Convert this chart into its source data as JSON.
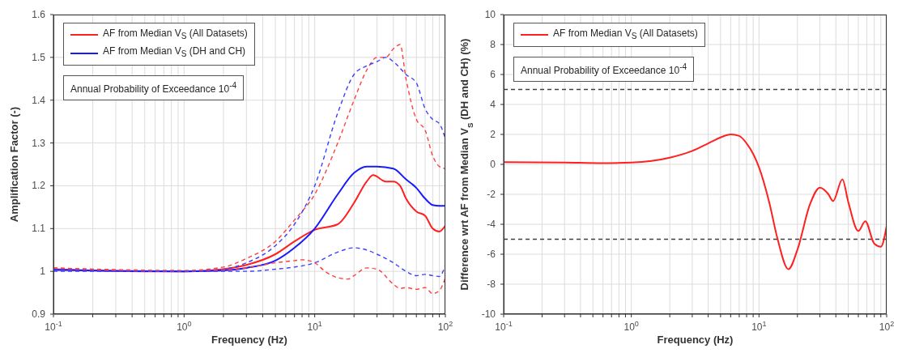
{
  "chart_data": [
    {
      "type": "line",
      "xlabel": "Frequency (Hz)",
      "ylabel": "Amplification Factor (-)",
      "log": "x",
      "grid": true,
      "legend": "top left",
      "xlim": [
        0.1,
        100
      ],
      "xticks": [
        {
          "value": 0.1,
          "label": "10$^{-1}$"
        },
        {
          "value": 0.2,
          "label": null
        },
        {
          "value": 0.3,
          "label": null
        },
        {
          "value": 0.4,
          "label": null
        },
        {
          "value": 0.5,
          "label": null
        },
        {
          "value": 0.6,
          "label": null
        },
        {
          "value": 0.7,
          "label": null
        },
        {
          "value": 0.8,
          "label": null
        },
        {
          "value": 0.9,
          "label": null
        },
        {
          "value": 1,
          "label": "10$^{0}$"
        },
        {
          "value": 2,
          "label": null
        },
        {
          "value": 3,
          "label": null
        },
        {
          "value": 4,
          "label": null
        },
        {
          "value": 5,
          "label": null
        },
        {
          "value": 6,
          "label": null
        },
        {
          "value": 7,
          "label": null
        },
        {
          "value": 8,
          "label": null
        },
        {
          "value": 9,
          "label": null
        },
        {
          "value": 10,
          "label": "10$^{1}$"
        },
        {
          "value": 20,
          "label": null
        },
        {
          "value": 30,
          "label": null
        },
        {
          "value": 40,
          "label": null
        },
        {
          "value": 50,
          "label": null
        },
        {
          "value": 60,
          "label": null
        },
        {
          "value": 70,
          "label": null
        },
        {
          "value": 80,
          "label": null
        },
        {
          "value": 90,
          "label": null
        },
        {
          "value": 100,
          "label": "10$^{2}$"
        }
      ],
      "ylim": [
        0.9,
        1.6
      ],
      "yticks": [
        0.9,
        1,
        1.1,
        1.2,
        1.3,
        1.4,
        1.5,
        1.6
      ],
      "annotations": [
        "Annual Probability of Exceedance 10$^{-4}$"
      ],
      "series": [
        {
          "name": "AF from Median V$_{S}$ (All Datasets)",
          "color": "#ff2020",
          "line_style": "solid",
          "x": [
            0.1,
            0.5,
            1,
            2,
            3,
            5,
            7,
            10,
            15,
            20,
            25,
            28,
            35,
            40,
            45,
            50,
            60,
            70,
            80,
            90,
            100
          ],
          "values": [
            1.005,
            1.0,
            1.0,
            1.005,
            1.015,
            1.04,
            1.07,
            1.097,
            1.11,
            1.16,
            1.21,
            1.225,
            1.21,
            1.21,
            1.2,
            1.17,
            1.14,
            1.13,
            1.1,
            1.093,
            1.107
          ]
        },
        {
          "name": "AF from Median V$_{S}$ (DH and CH)",
          "color": "#1a1aff",
          "line_style": "solid",
          "x": [
            0.1,
            1,
            2,
            3,
            5,
            7,
            10,
            15,
            20,
            25,
            30,
            40,
            50,
            60,
            70,
            80,
            90,
            100
          ],
          "values": [
            1.003,
            1.0,
            1.002,
            1.008,
            1.025,
            1.055,
            1.1,
            1.18,
            1.23,
            1.245,
            1.245,
            1.24,
            1.215,
            1.195,
            1.17,
            1.155,
            1.153,
            1.153
          ]
        },
        {
          "color": "#ff4040",
          "line_style": "dashed",
          "x": [
            0.1,
            1,
            2,
            3,
            5,
            7,
            10,
            15,
            20,
            25,
            30,
            35,
            40,
            45,
            50,
            60,
            70,
            80,
            90,
            100
          ],
          "values": [
            1.008,
            1.002,
            1.01,
            1.03,
            1.07,
            1.12,
            1.18,
            1.3,
            1.4,
            1.47,
            1.5,
            1.5,
            1.52,
            1.53,
            1.45,
            1.355,
            1.33,
            1.27,
            1.245,
            1.24
          ]
        },
        {
          "color": "#3f3fff",
          "line_style": "dashed",
          "x": [
            0.1,
            1,
            2,
            3,
            5,
            7,
            10,
            15,
            20,
            25,
            30,
            35,
            40,
            50,
            60,
            70,
            80,
            90,
            100
          ],
          "values": [
            1.005,
            1.0,
            1.005,
            1.02,
            1.06,
            1.11,
            1.2,
            1.37,
            1.46,
            1.48,
            1.49,
            1.5,
            1.49,
            1.46,
            1.44,
            1.38,
            1.355,
            1.345,
            1.31
          ]
        },
        {
          "color": "#ff4040",
          "line_style": "dashed",
          "x": [
            0.1,
            1,
            2,
            3,
            5,
            7,
            8,
            10,
            12,
            15,
            18,
            20,
            25,
            30,
            40,
            45,
            50,
            60,
            70,
            80,
            90,
            100
          ],
          "values": [
            1.008,
            1.0,
            1.003,
            1.008,
            1.02,
            1.025,
            1.027,
            1.02,
            1.0,
            0.985,
            0.982,
            0.99,
            1.008,
            1.005,
            0.97,
            0.96,
            0.962,
            0.958,
            0.962,
            0.948,
            0.955,
            0.985
          ]
        },
        {
          "color": "#3f3fff",
          "line_style": "dashed",
          "x": [
            0.1,
            1,
            2,
            3,
            5,
            7,
            10,
            15,
            20,
            25,
            30,
            40,
            50,
            60,
            70,
            80,
            90,
            100
          ],
          "values": [
            1.0,
            1.0,
            1.0,
            1.0,
            1.005,
            1.01,
            1.02,
            1.045,
            1.055,
            1.05,
            1.04,
            1.02,
            1.0,
            0.99,
            0.993,
            0.99,
            0.988,
            1.015
          ]
        }
      ]
    },
    {
      "type": "line",
      "xlabel": "Frequency (Hz)",
      "ylabel": "Difference wrt AF from Median V$_{S}$ (DH and CH) (%)",
      "log": "x",
      "grid": true,
      "legend": "top left",
      "xlim": [
        0.1,
        100
      ],
      "xticks": [
        {
          "value": 0.1,
          "label": "10$^{-1}$"
        },
        {
          "value": 0.2,
          "label": null
        },
        {
          "value": 0.3,
          "label": null
        },
        {
          "value": 0.4,
          "label": null
        },
        {
          "value": 0.5,
          "label": null
        },
        {
          "value": 0.6,
          "label": null
        },
        {
          "value": 0.7,
          "label": null
        },
        {
          "value": 0.8,
          "label": null
        },
        {
          "value": 0.9,
          "label": null
        },
        {
          "value": 1,
          "label": "10$^{0}$"
        },
        {
          "value": 2,
          "label": null
        },
        {
          "value": 3,
          "label": null
        },
        {
          "value": 4,
          "label": null
        },
        {
          "value": 5,
          "label": null
        },
        {
          "value": 6,
          "label": null
        },
        {
          "value": 7,
          "label": null
        },
        {
          "value": 8,
          "label": null
        },
        {
          "value": 9,
          "label": null
        },
        {
          "value": 10,
          "label": "10$^{1}$"
        },
        {
          "value": 20,
          "label": null
        },
        {
          "value": 30,
          "label": null
        },
        {
          "value": 40,
          "label": null
        },
        {
          "value": 50,
          "label": null
        },
        {
          "value": 60,
          "label": null
        },
        {
          "value": 70,
          "label": null
        },
        {
          "value": 80,
          "label": null
        },
        {
          "value": 90,
          "label": null
        },
        {
          "value": 100,
          "label": "10$^{2}$"
        }
      ],
      "ylim": [
        -10,
        10
      ],
      "yticks": [
        -10,
        -8,
        -6,
        -4,
        -2,
        0,
        2,
        4,
        6,
        8,
        10
      ],
      "annotations": [
        "Annual Probability of Exceedance 10$^{-4}$"
      ],
      "ref_lines": [
        {
          "axis": "y",
          "value": 5,
          "color": "#404040",
          "line_style": "dashed"
        },
        {
          "axis": "y",
          "value": -5,
          "color": "#404040",
          "line_style": "dashed"
        }
      ],
      "series": [
        {
          "name": "AF from Median V$_{S}$ (All Datasets)",
          "color": "#ff2020",
          "line_style": "solid",
          "x": [
            0.1,
            0.3,
            0.6,
            1,
            2,
            3,
            4,
            5,
            6,
            7,
            8,
            9,
            10,
            12,
            14,
            17,
            20,
            25,
            30,
            35,
            38,
            45,
            50,
            60,
            68,
            80,
            90,
            100
          ],
          "values": [
            0.15,
            0.12,
            0.08,
            0.12,
            0.45,
            0.9,
            1.4,
            1.8,
            2.0,
            1.9,
            1.4,
            0.7,
            -0.2,
            -2.5,
            -5,
            -7.0,
            -5.7,
            -2.7,
            -1.55,
            -2.0,
            -2.45,
            -1.0,
            -2.5,
            -4.45,
            -3.8,
            -5.3,
            -5.5,
            -4.1
          ]
        }
      ]
    }
  ]
}
